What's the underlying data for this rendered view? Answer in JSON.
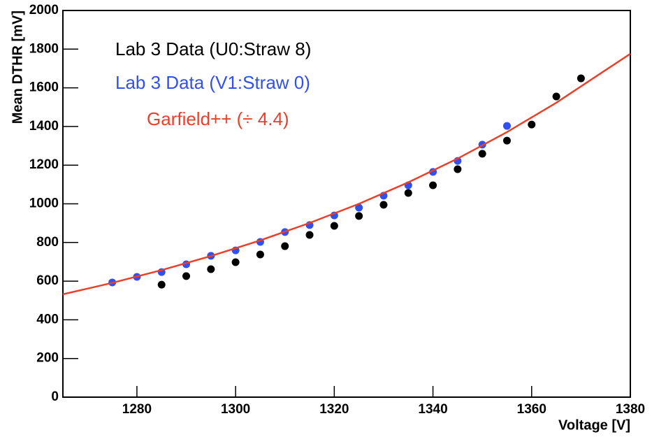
{
  "chart_data": {
    "type": "scatter",
    "xlabel": "Voltage [V]",
    "ylabel": "Mean DTHR [mV]",
    "xlim": [
      1265,
      1380
    ],
    "xticks": [
      1280,
      1300,
      1320,
      1340,
      1360,
      1380
    ],
    "ylim": [
      0,
      2000
    ],
    "yticks": [
      0,
      200,
      400,
      600,
      800,
      1000,
      1200,
      1400,
      1600,
      1800,
      2000
    ],
    "series": [
      {
        "name": "Lab 3 Data (U0:Straw 8)",
        "color": "#000000",
        "type": "scatter",
        "x": [
          1285,
          1290,
          1295,
          1300,
          1305,
          1310,
          1315,
          1320,
          1325,
          1330,
          1335,
          1340,
          1345,
          1350,
          1355,
          1360,
          1365,
          1370
        ],
        "values": [
          582,
          626,
          662,
          698,
          738,
          781,
          839,
          886,
          937,
          995,
          1056,
          1096,
          1179,
          1259,
          1327,
          1410,
          1555,
          1649
        ]
      },
      {
        "name": "Lab 3 Data (V1:Straw 0)",
        "color": "#3050f0",
        "type": "scatter",
        "x": [
          1275,
          1280,
          1285,
          1290,
          1295,
          1300,
          1305,
          1310,
          1315,
          1320,
          1325,
          1330,
          1335,
          1340,
          1345,
          1350,
          1355
        ],
        "values": [
          593,
          622,
          647,
          687,
          731,
          759,
          803,
          854,
          890,
          940,
          980,
          1042,
          1096,
          1165,
          1222,
          1306,
          1403
        ]
      },
      {
        "name": "Garfield++ (÷ 4.4)",
        "color": "#e8402a",
        "type": "line",
        "x": [
          1265,
          1275,
          1285,
          1295,
          1305,
          1315,
          1325,
          1335,
          1345,
          1355,
          1365,
          1375,
          1380
        ],
        "values": [
          532,
          591,
          657,
          730,
          811,
          901,
          1000,
          1111,
          1234,
          1371,
          1523,
          1692,
          1776
        ]
      }
    ]
  }
}
